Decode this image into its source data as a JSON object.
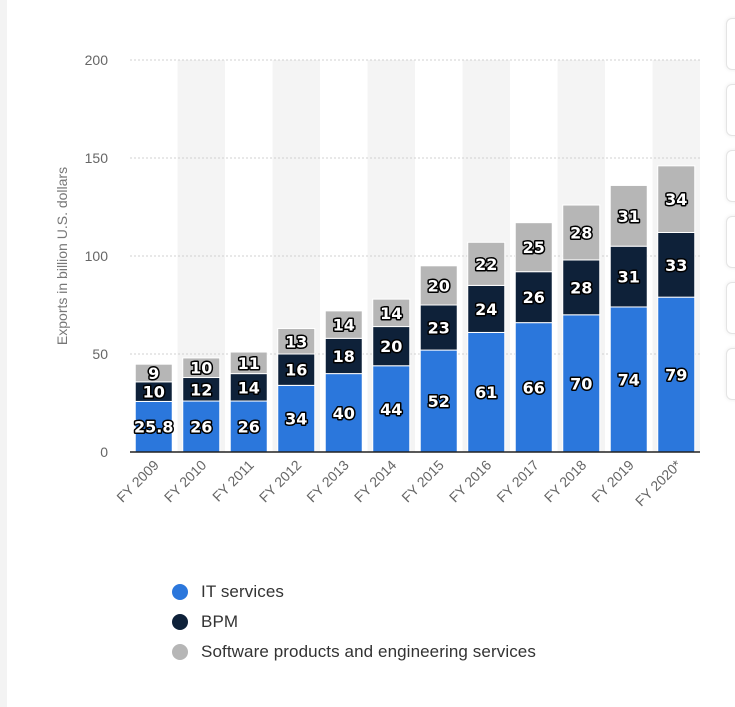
{
  "chart_data": {
    "type": "bar",
    "stacked": true,
    "title": "",
    "xlabel": "",
    "ylabel": "Exports in billion U.S. dollars",
    "ylim": [
      0,
      200
    ],
    "yticks": [
      0,
      50,
      100,
      150,
      200
    ],
    "grid": true,
    "legend_position": "bottom-left",
    "categories": [
      "FY 2009",
      "FY 2010",
      "FY 2011",
      "FY 2012",
      "FY 2013",
      "FY 2014",
      "FY 2015",
      "FY 2016",
      "FY 2017",
      "FY 2018",
      "FY 2019",
      "FY 2020*"
    ],
    "series": [
      {
        "name": "IT services",
        "color": "#2b77dc",
        "values": [
          25.8,
          26,
          26,
          34,
          40,
          44,
          52,
          61,
          66,
          70,
          74,
          79
        ],
        "labels": [
          "25.8",
          "26",
          "26",
          "34",
          "40",
          "44",
          "52",
          "61",
          "66",
          "70",
          "74",
          "79"
        ]
      },
      {
        "name": "BPM",
        "color": "#0e2139",
        "values": [
          10,
          12,
          14,
          16,
          18,
          20,
          23,
          24,
          26,
          28,
          31,
          33
        ],
        "labels": [
          "10",
          "12",
          "14",
          "16",
          "18",
          "20",
          "23",
          "24",
          "26",
          "28",
          "31",
          "33"
        ]
      },
      {
        "name": "Software products and engineering services",
        "color": "#b6b6b6",
        "values": [
          9,
          10,
          11,
          13,
          14,
          14,
          20,
          22,
          25,
          28,
          31,
          34
        ],
        "labels": [
          "9",
          "10",
          "11",
          "13",
          "14",
          "14",
          "20",
          "22",
          "25",
          "28",
          "31",
          "34"
        ]
      }
    ]
  },
  "colors": {
    "band": "#f4f4f4",
    "grid": "#d0d0d0",
    "axis": "#222222",
    "tick_text": "#666666"
  }
}
